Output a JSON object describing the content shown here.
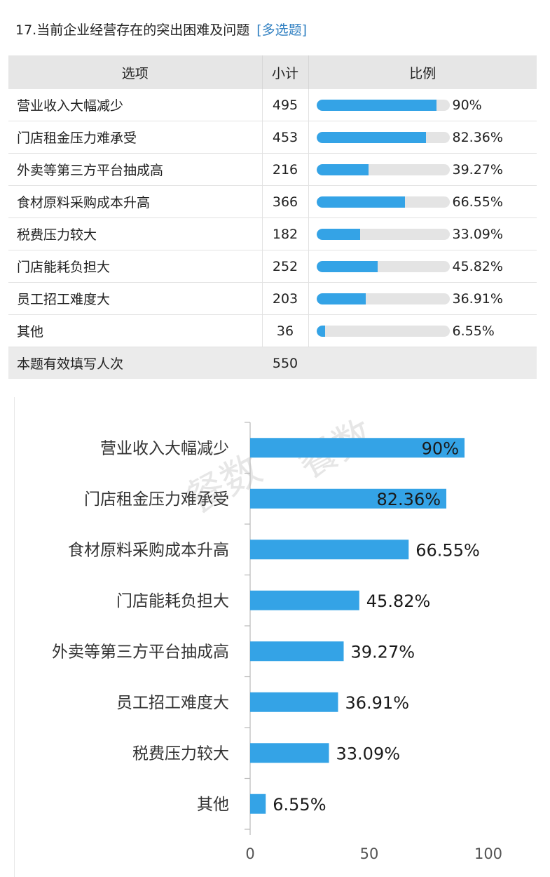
{
  "question": {
    "title": "17.当前企业经营存在的突出困难及问题",
    "tag": "[多选题]"
  },
  "table": {
    "headers": [
      "选项",
      "小计",
      "比例"
    ],
    "rows": [
      {
        "option": "营业收入大幅减少",
        "count": "495",
        "ratio": 90,
        "ratio_label": "90%"
      },
      {
        "option": "门店租金压力难承受",
        "count": "453",
        "ratio": 82.36,
        "ratio_label": "82.36%"
      },
      {
        "option": "外卖等第三方平台抽成高",
        "count": "216",
        "ratio": 39.27,
        "ratio_label": "39.27%"
      },
      {
        "option": "食材原料采购成本升高",
        "count": "366",
        "ratio": 66.55,
        "ratio_label": "66.55%"
      },
      {
        "option": "税费压力较大",
        "count": "182",
        "ratio": 33.09,
        "ratio_label": "33.09%"
      },
      {
        "option": "门店能耗负担大",
        "count": "252",
        "ratio": 45.82,
        "ratio_label": "45.82%"
      },
      {
        "option": "员工招工难度大",
        "count": "203",
        "ratio": 36.91,
        "ratio_label": "36.91%"
      },
      {
        "option": "其他",
        "count": "36",
        "ratio": 6.55,
        "ratio_label": "6.55%"
      }
    ],
    "total_label": "本题有效填写人次",
    "total_value": "550"
  },
  "watermark": [
    "餐数",
    "餐数"
  ],
  "colors": {
    "bar": "#34a3e6",
    "track": "#e4e4e4"
  },
  "chart_data": {
    "type": "bar",
    "orientation": "horizontal",
    "categories": [
      "营业收入大幅减少",
      "门店租金压力难承受",
      "食材原料采购成本升高",
      "门店能耗负担大",
      "外卖等第三方平台抽成高",
      "员工招工难度大",
      "税费压力较大",
      "其他"
    ],
    "values": [
      90,
      82.36,
      66.55,
      45.82,
      39.27,
      36.91,
      33.09,
      6.55
    ],
    "value_labels": [
      "90%",
      "82.36%",
      "66.55%",
      "45.82%",
      "39.27%",
      "36.91%",
      "33.09%",
      "6.55%"
    ],
    "xlim": [
      0,
      100
    ],
    "xticks": [
      0,
      50,
      100
    ],
    "grid": false
  }
}
